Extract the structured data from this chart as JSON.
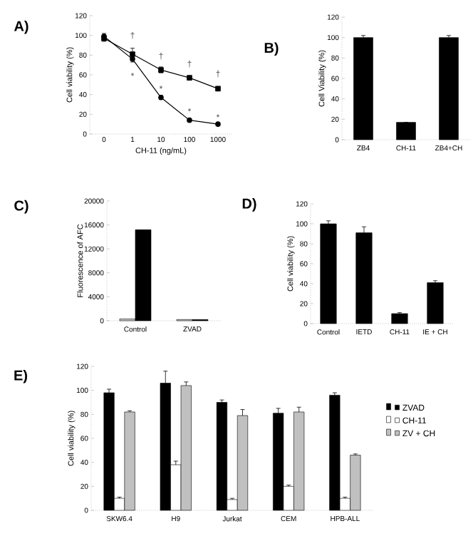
{
  "chart_data": [
    {
      "type": "line",
      "title": "A)",
      "xlabel": "CH-11 (ng/mL)",
      "ylabel": "Cell viability (%)",
      "categories": [
        "0",
        "1",
        "10",
        "100",
        "1000"
      ],
      "ylim": [
        0,
        120
      ],
      "yticks": [
        0,
        20,
        40,
        60,
        80,
        100,
        120
      ],
      "legend": false,
      "series": [
        {
          "color": "#000000",
          "marker": "square",
          "values": [
            97,
            81,
            65,
            57,
            46
          ],
          "errors": [
            3,
            6,
            3,
            2,
            2
          ]
        },
        {
          "color": "#000000",
          "marker": "circle",
          "values": [
            99,
            76,
            37,
            14,
            10
          ],
          "errors": [
            3,
            3,
            2,
            1,
            1
          ]
        }
      ],
      "annotations": [
        "†",
        "†",
        "†",
        "†",
        "*",
        "*",
        "*",
        "*"
      ]
    },
    {
      "type": "bar",
      "title": "B)",
      "ylabel": "Cell Viability (%)",
      "categories": [
        "ZB4",
        "CH-11",
        "ZB4+CH"
      ],
      "ylim": [
        0,
        120
      ],
      "yticks": [
        0,
        20,
        40,
        60,
        80,
        100,
        120
      ],
      "legend": false,
      "series": [
        {
          "color": "#000000",
          "values": [
            100,
            17,
            100
          ],
          "errors": [
            [
              100,
              102
            ],
            null,
            [
              100,
              102
            ]
          ]
        }
      ]
    },
    {
      "type": "bar",
      "title": "C)",
      "ylabel": "Fluorescence of AFC",
      "categories": [
        "Control",
        "ZVAD"
      ],
      "ylim": [
        0,
        20000
      ],
      "yticks": [
        0,
        4000,
        8000,
        12000,
        16000,
        20000
      ],
      "legend": false,
      "series": [
        {
          "color": "#c8c8c8",
          "values": [
            300,
            200
          ]
        },
        {
          "color": "#000000",
          "values": [
            15200,
            200
          ]
        }
      ]
    },
    {
      "type": "bar",
      "title": "D)",
      "ylabel": "Cell viability (%)",
      "categories": [
        "Control",
        "IETD",
        "CH-11",
        "IE + CH"
      ],
      "ylim": [
        0,
        120
      ],
      "yticks": [
        0,
        20,
        40,
        60,
        80,
        100,
        120
      ],
      "legend": false,
      "series": [
        {
          "color": "#000000",
          "values": [
            100,
            91,
            10,
            41
          ],
          "errors": [
            [
              100,
              103
            ],
            [
              91,
              97
            ],
            [
              10,
              11
            ],
            [
              41,
              43
            ]
          ]
        }
      ]
    },
    {
      "type": "bar",
      "title": "E)",
      "ylabel": "Cell viability (%)",
      "categories": [
        "SKW6.4",
        "H9",
        "Jurkat",
        "CEM",
        "HPB-ALL"
      ],
      "ylim": [
        0,
        120
      ],
      "yticks": [
        0,
        20,
        40,
        60,
        80,
        100,
        120
      ],
      "legend": "right",
      "series": [
        {
          "name": "ZVAD",
          "color": "#000000",
          "values": [
            98,
            106,
            90,
            81,
            96
          ],
          "errors": [
            [
              98,
              101
            ],
            [
              106,
              116
            ],
            [
              90,
              92
            ],
            [
              81,
              85
            ],
            [
              96,
              98
            ]
          ]
        },
        {
          "name": "CH-11",
          "color": "#ffffff",
          "values": [
            10,
            38,
            9,
            20,
            10
          ],
          "errors": [
            [
              10,
              11
            ],
            [
              38,
              41
            ],
            [
              9,
              10
            ],
            [
              20,
              21
            ],
            [
              10,
              11
            ]
          ]
        },
        {
          "name": "ZV + CH",
          "color": "#c0c0c0",
          "values": [
            82,
            104,
            79,
            82,
            46
          ],
          "errors": [
            [
              82,
              83
            ],
            [
              104,
              107
            ],
            [
              79,
              84
            ],
            [
              82,
              86
            ],
            [
              46,
              47
            ]
          ]
        }
      ]
    }
  ]
}
